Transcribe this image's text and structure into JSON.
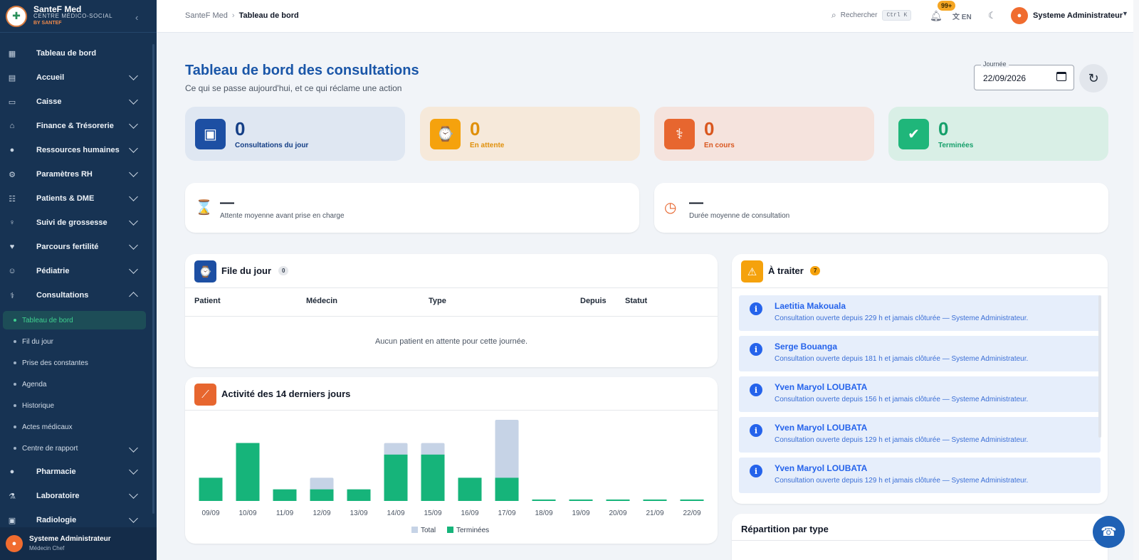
{
  "brand": {
    "name": "SanteF Med",
    "subtitle": "CENTRE MÉDICO-SOCIAL",
    "by": "BY SANTEF",
    "collapse": "‹"
  },
  "nav": [
    {
      "label": "Tableau de bord",
      "icon": "dashboard-icon",
      "glyph": "▦",
      "chevron": false
    },
    {
      "label": "Accueil",
      "icon": "reception-icon",
      "glyph": "▤",
      "chevron": true
    },
    {
      "label": "Caisse",
      "icon": "cash-register-icon",
      "glyph": "▭",
      "chevron": true
    },
    {
      "label": "Finance & Trésorerie",
      "icon": "bank-icon",
      "glyph": "⌂",
      "chevron": true
    },
    {
      "label": "Ressources humaines",
      "icon": "person-icon",
      "glyph": "●",
      "chevron": true
    },
    {
      "label": "Paramètres RH",
      "icon": "person-settings-icon",
      "glyph": "⚙",
      "chevron": true
    },
    {
      "label": "Patients & DME",
      "icon": "group-icon",
      "glyph": "☷",
      "chevron": true
    },
    {
      "label": "Suivi de grossesse",
      "icon": "pregnancy-icon",
      "glyph": "♀",
      "chevron": true
    },
    {
      "label": "Parcours fertilité",
      "icon": "heart-icon",
      "glyph": "♥",
      "chevron": true
    },
    {
      "label": "Pédiatrie",
      "icon": "baby-icon",
      "glyph": "☺",
      "chevron": true
    },
    {
      "label": "Consultations",
      "icon": "stethoscope-icon",
      "glyph": "⚕",
      "chevron": true,
      "open": true
    }
  ],
  "subnav": [
    "Tableau de bord",
    "Fil du jour",
    "Prise des constantes",
    "Agenda",
    "Historique",
    "Actes médicaux",
    "Centre de rapport"
  ],
  "nav2": [
    {
      "label": "Pharmacie",
      "icon": "pill-icon",
      "glyph": "●"
    },
    {
      "label": "Laboratoire",
      "icon": "flask-icon",
      "glyph": "⚗"
    },
    {
      "label": "Radiologie",
      "icon": "radiology-icon",
      "glyph": "▣"
    }
  ],
  "sidebar_user": {
    "name": "Systeme Administrateur",
    "role": "Médecin Chef"
  },
  "topbar": {
    "crumb_root": "SanteF Med",
    "crumb_current": "Tableau de bord",
    "search": "Rechercher",
    "shortcut": "Ctrl K",
    "notif_badge": "99+",
    "lang": "EN",
    "user": "Systeme Administrateur"
  },
  "page": {
    "title": "Tableau de bord des consultations",
    "subtitle": "Ce qui se passe aujourd'hui, et ce qui réclame une action",
    "date_label": "Journée",
    "date_value": "22/09/2026"
  },
  "stats": [
    {
      "value": "0",
      "label": "Consultations du jour",
      "bg": "#dfe7f2",
      "ic": "#1d4fa3",
      "fg": "#153f86",
      "icon": "calendar-icon",
      "glyph": "▣"
    },
    {
      "value": "0",
      "label": "En attente",
      "bg": "#f6e9da",
      "ic": "#f5a20d",
      "fg": "#e0900a",
      "icon": "person-clock-icon",
      "glyph": "⌚"
    },
    {
      "value": "0",
      "label": "En cours",
      "bg": "#f5e3dd",
      "ic": "#e7662f",
      "fg": "#d9571f",
      "icon": "stethoscope-icon",
      "glyph": "⚕"
    },
    {
      "value": "0",
      "label": "Terminées",
      "bg": "#d9efe6",
      "ic": "#1fb67a",
      "fg": "#16a06b",
      "icon": "check-circle-icon",
      "glyph": "✔"
    }
  ],
  "metrics": [
    {
      "value": "—",
      "label": "Attente moyenne avant prise en charge",
      "icon": "hourglass-icon",
      "glyph": "⌛",
      "color": "#1d4fa3"
    },
    {
      "value": "—",
      "label": "Durée moyenne de consultation",
      "icon": "clock-check-icon",
      "glyph": "◷",
      "color": "#e7662f"
    }
  ],
  "queue": {
    "title": "File du jour",
    "count": "0",
    "columns": [
      "Patient",
      "Médecin",
      "Type",
      "Depuis",
      "Statut"
    ],
    "empty": "Aucun patient en attente pour cette journée."
  },
  "todo": {
    "title": "À traiter",
    "count": "7",
    "items": [
      {
        "name": "Laetitia Makouala",
        "msg": "Consultation ouverte depuis 229 h et jamais clôturée — Systeme Administrateur."
      },
      {
        "name": "Serge Bouanga",
        "msg": "Consultation ouverte depuis 181 h et jamais clôturée — Systeme Administrateur."
      },
      {
        "name": "Yven Maryol LOUBATA",
        "msg": "Consultation ouverte depuis 156 h et jamais clôturée — Systeme Administrateur."
      },
      {
        "name": "Yven Maryol LOUBATA",
        "msg": "Consultation ouverte depuis 129 h et jamais clôturée — Systeme Administrateur."
      },
      {
        "name": "Yven Maryol LOUBATA",
        "msg": "Consultation ouverte depuis 129 h et jamais clôturée — Systeme Administrateur."
      }
    ]
  },
  "activity": {
    "title": "Activité des 14 derniers jours"
  },
  "repartition": {
    "title": "Répartition par type"
  },
  "colors": {
    "total": "#c6d3e6",
    "done": "#16b47a"
  },
  "chart_data": {
    "type": "bar",
    "categories": [
      "09/09",
      "10/09",
      "11/09",
      "12/09",
      "13/09",
      "14/09",
      "15/09",
      "16/09",
      "17/09",
      "18/09",
      "19/09",
      "20/09",
      "21/09",
      "22/09"
    ],
    "series": [
      {
        "name": "Total",
        "values": [
          2,
          5,
          1,
          2,
          1,
          5,
          5,
          2,
          7,
          0,
          0,
          0,
          0,
          0
        ]
      },
      {
        "name": "Terminées",
        "values": [
          2,
          5,
          1,
          1,
          1,
          4,
          4,
          2,
          2,
          0,
          0,
          0,
          0,
          0
        ]
      }
    ],
    "legend": "bottom-center",
    "ylim": [
      0,
      7
    ],
    "grid": false
  }
}
